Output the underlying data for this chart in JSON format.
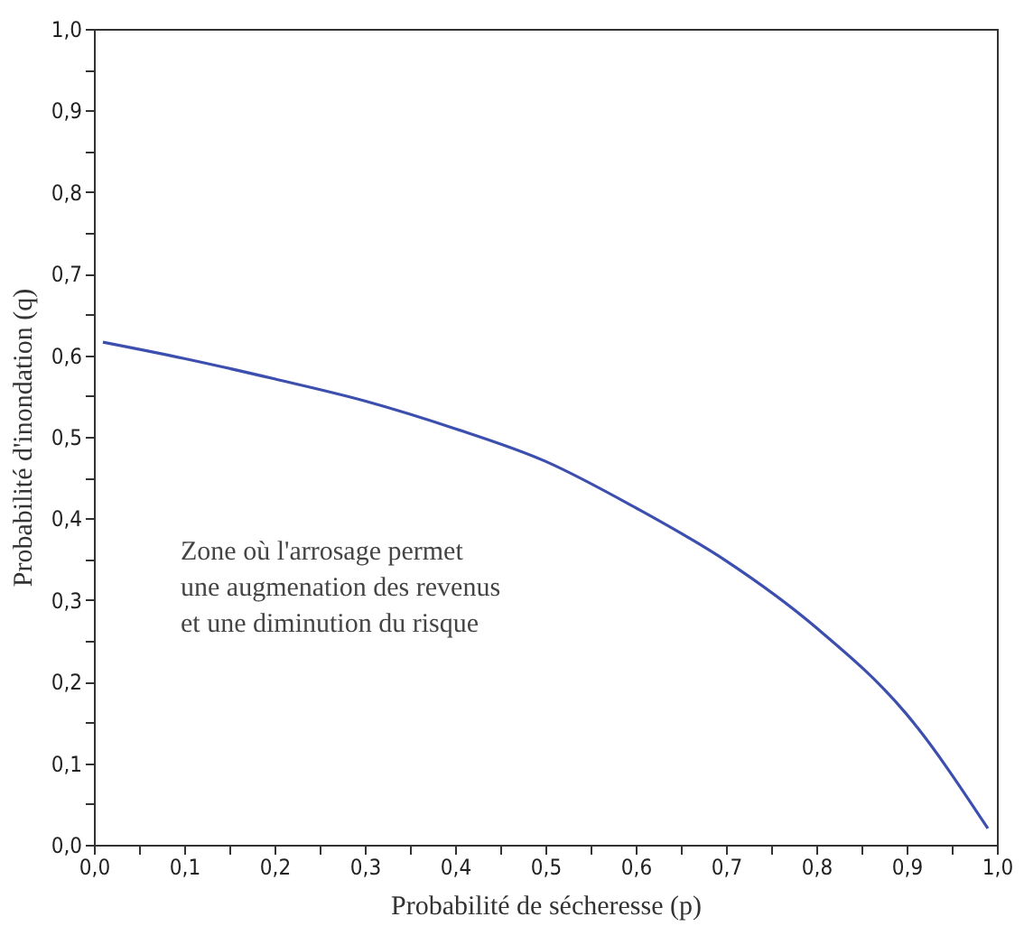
{
  "chart_data": {
    "type": "line",
    "xlabel": "Probabilité de sécheresse (p)",
    "ylabel": "Probabilité d'inondation (q)",
    "x": [
      0.01,
      0.1,
      0.2,
      0.3,
      0.4,
      0.5,
      0.6,
      0.7,
      0.8,
      0.9,
      0.99
    ],
    "series": [
      {
        "color": "#3d4fae",
        "values": [
          0.616,
          0.596,
          0.571,
          0.544,
          0.51,
          0.47,
          0.413,
          0.348,
          0.266,
          0.16,
          0.02
        ]
      }
    ],
    "xlim": [
      0,
      1
    ],
    "ylim": [
      0,
      1
    ],
    "xticks": [
      {
        "value": 0,
        "label": "0,0"
      },
      {
        "value": 0.05,
        "label": null
      },
      {
        "value": 0.1,
        "label": "0,1"
      },
      {
        "value": 0.15,
        "label": null
      },
      {
        "value": 0.2,
        "label": "0,2"
      },
      {
        "value": 0.25,
        "label": null
      },
      {
        "value": 0.3,
        "label": "0,3"
      },
      {
        "value": 0.35,
        "label": null
      },
      {
        "value": 0.4,
        "label": "0,4"
      },
      {
        "value": 0.45,
        "label": null
      },
      {
        "value": 0.5,
        "label": "0,5"
      },
      {
        "value": 0.55,
        "label": null
      },
      {
        "value": 0.6,
        "label": "0,6"
      },
      {
        "value": 0.65,
        "label": null
      },
      {
        "value": 0.7,
        "label": "0,7"
      },
      {
        "value": 0.75,
        "label": null
      },
      {
        "value": 0.8,
        "label": "0,8"
      },
      {
        "value": 0.85,
        "label": null
      },
      {
        "value": 0.9,
        "label": "0,9"
      },
      {
        "value": 0.95,
        "label": null
      },
      {
        "value": 1,
        "label": "1,0"
      }
    ],
    "yticks": [
      {
        "value": 0,
        "label": "0,0"
      },
      {
        "value": 0.05,
        "label": null
      },
      {
        "value": 0.1,
        "label": "0,1"
      },
      {
        "value": 0.15,
        "label": null
      },
      {
        "value": 0.2,
        "label": "0,2"
      },
      {
        "value": 0.25,
        "label": null
      },
      {
        "value": 0.3,
        "label": "0,3"
      },
      {
        "value": 0.35,
        "label": null
      },
      {
        "value": 0.4,
        "label": "0,4"
      },
      {
        "value": 0.45,
        "label": null
      },
      {
        "value": 0.5,
        "label": "0,5"
      },
      {
        "value": 0.55,
        "label": null
      },
      {
        "value": 0.6,
        "label": "0,6"
      },
      {
        "value": 0.65,
        "label": null
      },
      {
        "value": 0.7,
        "label": "0,7"
      },
      {
        "value": 0.75,
        "label": null
      },
      {
        "value": 0.8,
        "label": "0,8"
      },
      {
        "value": 0.85,
        "label": null
      },
      {
        "value": 0.9,
        "label": "0,9"
      },
      {
        "value": 0.95,
        "label": null
      },
      {
        "value": 1,
        "label": "1,0"
      }
    ],
    "annotations": [
      "Zone où l'arrosage permet",
      "une augmenation des revenus",
      "et une diminution du risque"
    ],
    "grid": false,
    "legend": false,
    "marker": "none",
    "line_style": "solid"
  }
}
